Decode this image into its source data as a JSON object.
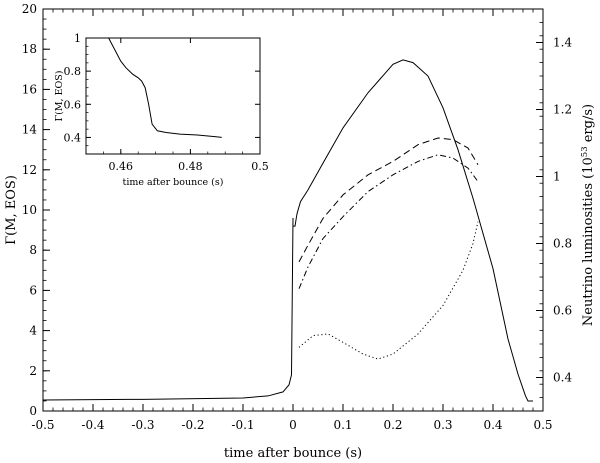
{
  "chart_data": [
    {
      "type": "line",
      "xlabel": "time after bounce (s)",
      "ylabel": "Γ(M, EOS)",
      "y2label_main": "Neutrino luminosities (10",
      "y2label_exp": "53",
      "y2label_unit": " erg/s)",
      "xlim": [
        -0.5,
        0.5
      ],
      "ylim": [
        0,
        20
      ],
      "y2lim": [
        0.3,
        1.5
      ],
      "xticks": [
        -0.5,
        -0.4,
        -0.3,
        -0.2,
        -0.1,
        0,
        0.1,
        0.2,
        0.3,
        0.4,
        0.5
      ],
      "xtick_labels": [
        "-0.5",
        "-0.4",
        "-0.3",
        "-0.2",
        "-0.1",
        "0",
        "0.1",
        "0.2",
        "0.3",
        "0.4",
        "0.5"
      ],
      "yticks": [
        0,
        2,
        4,
        6,
        8,
        10,
        12,
        14,
        16,
        18,
        20
      ],
      "ytick_labels": [
        "0",
        "2",
        "4",
        "6",
        "8",
        "10",
        "12",
        "14",
        "16",
        "18",
        "20"
      ],
      "y2ticks": [
        0.4,
        0.6,
        0.8,
        1.0,
        1.2,
        1.4
      ],
      "y2tick_labels": [
        "0.4",
        "0.6",
        "0.8",
        "1",
        "1.2",
        "1.4"
      ],
      "grid": false,
      "series": [
        {
          "axis": "left",
          "style": "solid",
          "x": [
            -0.5,
            -0.3,
            -0.1,
            -0.05,
            -0.02,
            -0.008,
            -0.003,
            0.0
          ],
          "y": [
            0.55,
            0.58,
            0.65,
            0.75,
            0.95,
            1.3,
            1.8,
            9.6
          ]
        },
        {
          "axis": "right",
          "style": "solid",
          "x": [
            0.0,
            0.004,
            0.008,
            0.015,
            0.03,
            0.06,
            0.1,
            0.15,
            0.2,
            0.22,
            0.24,
            0.27,
            0.3,
            0.33,
            0.36,
            0.4,
            0.43,
            0.45,
            0.465,
            0.47,
            0.48
          ],
          "y": [
            0.852,
            0.852,
            0.889,
            0.925,
            0.96,
            1.04,
            1.145,
            1.25,
            1.335,
            1.348,
            1.34,
            1.3,
            1.205,
            1.08,
            0.935,
            0.725,
            0.515,
            0.41,
            0.345,
            0.33,
            0.33
          ]
        },
        {
          "axis": "right",
          "style": "dashed",
          "x": [
            0.012,
            0.03,
            0.06,
            0.1,
            0.15,
            0.2,
            0.25,
            0.29,
            0.32,
            0.35,
            0.37
          ],
          "y": [
            0.745,
            0.795,
            0.875,
            0.945,
            1.005,
            1.045,
            1.095,
            1.115,
            1.11,
            1.085,
            1.035
          ]
        },
        {
          "axis": "right",
          "style": "dash-dot",
          "x": [
            0.012,
            0.03,
            0.06,
            0.1,
            0.15,
            0.2,
            0.25,
            0.29,
            0.32,
            0.35,
            0.37
          ],
          "y": [
            0.665,
            0.73,
            0.815,
            0.88,
            0.955,
            1.005,
            1.045,
            1.065,
            1.055,
            1.025,
            0.985
          ]
        },
        {
          "axis": "right",
          "style": "dotted",
          "x": [
            0.012,
            0.04,
            0.07,
            0.1,
            0.14,
            0.17,
            0.2,
            0.25,
            0.3,
            0.34,
            0.36,
            0.37
          ],
          "y": [
            0.49,
            0.525,
            0.53,
            0.505,
            0.47,
            0.455,
            0.47,
            0.53,
            0.615,
            0.72,
            0.8,
            0.865
          ]
        }
      ]
    },
    {
      "type": "line",
      "inset": true,
      "xlabel": "time after bounce (s)",
      "ylabel": "Γ(M, EOS)",
      "xlim": [
        0.45,
        0.5
      ],
      "ylim": [
        0.3,
        1.0
      ],
      "xticks": [
        0.46,
        0.48,
        0.5
      ],
      "xtick_labels": [
        "0.46",
        "0.48",
        "0.5"
      ],
      "yticks": [
        0.4,
        0.6,
        0.8,
        1.0
      ],
      "ytick_labels": [
        "0.4",
        "0.6",
        "0.8",
        "1"
      ],
      "series": [
        {
          "style": "solid",
          "x": [
            0.4565,
            0.4585,
            0.46,
            0.4615,
            0.4635,
            0.465,
            0.466,
            0.467,
            0.468,
            0.469,
            0.4705,
            0.473,
            0.477,
            0.482,
            0.487,
            0.489
          ],
          "y": [
            1.0,
            0.92,
            0.86,
            0.82,
            0.78,
            0.76,
            0.74,
            0.7,
            0.6,
            0.48,
            0.44,
            0.43,
            0.42,
            0.415,
            0.405,
            0.4
          ]
        }
      ]
    }
  ]
}
